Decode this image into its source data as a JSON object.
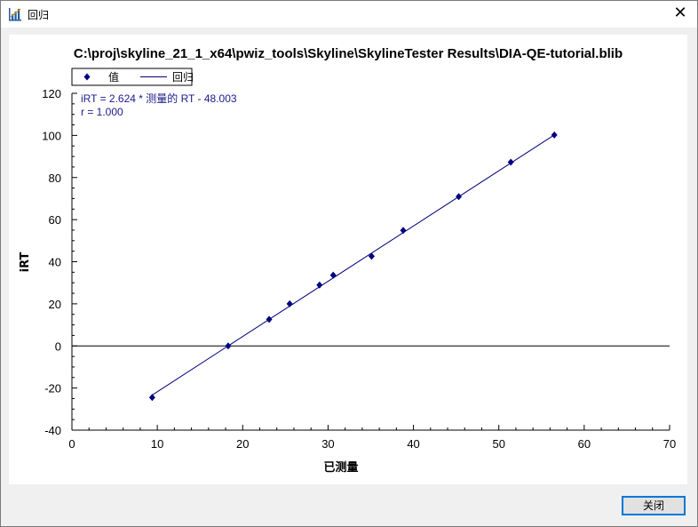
{
  "window": {
    "title": "回归",
    "icon": "regression-chart-icon",
    "close_glyph": "✕"
  },
  "footer": {
    "close_label": "关闭"
  },
  "chart_data": {
    "type": "scatter",
    "title": "C:\\proj\\skyline_21_1_x64\\pwiz_tools\\Skyline\\SkylineTester  Results\\DIA-QE-tutorial.blib",
    "xlabel": "已测量",
    "ylabel": "iRT",
    "xlim": [
      0,
      70
    ],
    "ylim": [
      -40,
      120
    ],
    "xticks": [
      0,
      10,
      20,
      30,
      40,
      50,
      60,
      70
    ],
    "yticks": [
      -40,
      -20,
      0,
      20,
      40,
      60,
      80,
      100,
      120
    ],
    "grid": false,
    "legend_position": "top-left",
    "legend": [
      {
        "label": "值",
        "kind": "marker"
      },
      {
        "label": "回归",
        "kind": "line"
      }
    ],
    "series": [
      {
        "name": "值",
        "color": "#00007f",
        "x": [
          9.4,
          18.3,
          23.1,
          25.5,
          29.0,
          30.6,
          35.1,
          38.8,
          45.3,
          51.4,
          56.5
        ],
        "y": [
          -24.5,
          0.0,
          12.6,
          20.0,
          28.9,
          33.6,
          42.6,
          54.9,
          70.9,
          87.3,
          100.2
        ]
      }
    ],
    "regression": {
      "name": "回归",
      "color": "#00007f",
      "slope": 2.624,
      "intercept": -48.003,
      "x_range": [
        9.4,
        56.5
      ]
    },
    "annotations": [
      "iRT = 2.624 * 测量的 RT - 48.003",
      "r = 1.000"
    ]
  }
}
